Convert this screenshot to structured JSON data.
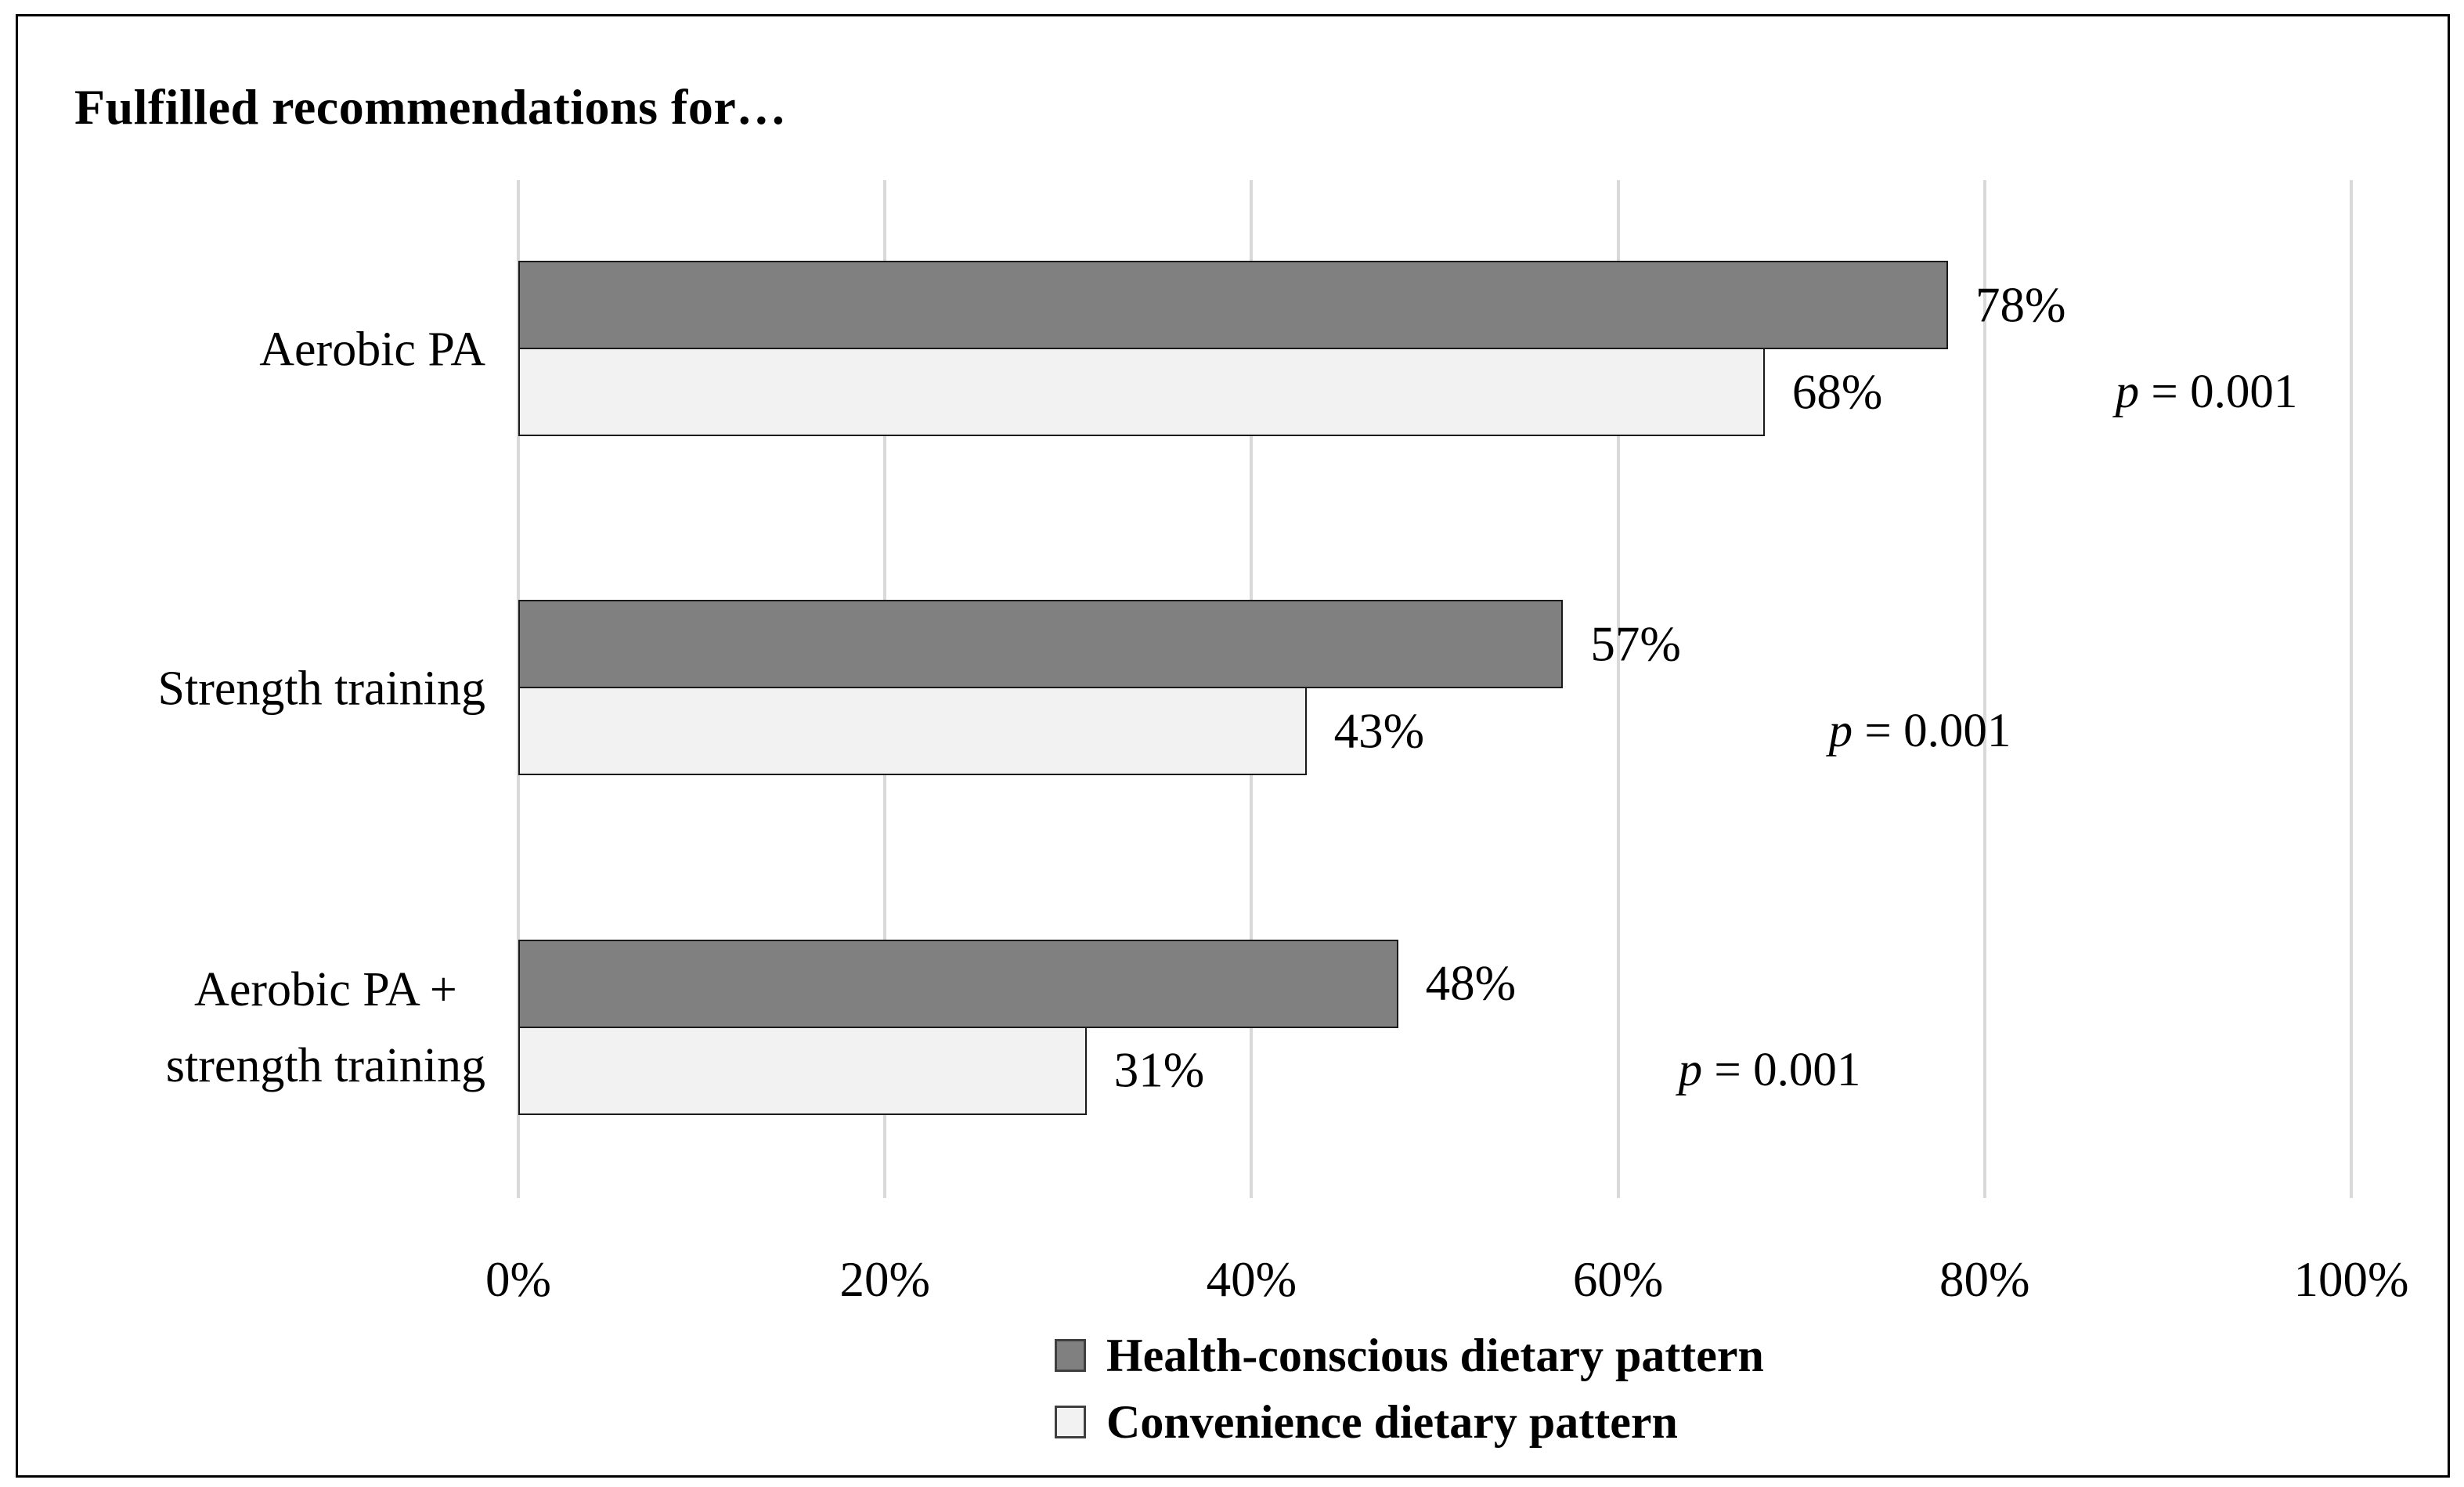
{
  "chart_data": {
    "type": "bar",
    "orientation": "horizontal",
    "title": "Fulfilled recommendations for…",
    "categories": [
      "Aerobic PA",
      "Strength training",
      "Aerobic PA + strength training"
    ],
    "category_label_lines": [
      [
        "Aerobic PA"
      ],
      [
        "Strength training"
      ],
      [
        "Aerobic PA +",
        "strength training"
      ]
    ],
    "series": [
      {
        "name": "Health-conscious dietary pattern",
        "color": "#808080",
        "values": [
          78,
          57,
          48
        ],
        "labels": [
          "78%",
          "57%",
          "48%"
        ]
      },
      {
        "name": "Convenience dietary pattern",
        "color": "#f2f2f2",
        "values": [
          68,
          43,
          31
        ],
        "labels": [
          "68%",
          "43%",
          "31%"
        ]
      }
    ],
    "p_values": [
      "p = 0.001",
      "p = 0.001",
      "p = 0.001"
    ],
    "xlabel": "",
    "ylabel": "",
    "xlim": [
      0,
      100
    ],
    "x_ticks": [
      "0%",
      "20%",
      "40%",
      "60%",
      "80%",
      "100%"
    ],
    "grid": "vertical-only",
    "gridline_color": "#d9d9d9",
    "bar_border_color": "#1a1a1a",
    "legend_position": "bottom"
  }
}
